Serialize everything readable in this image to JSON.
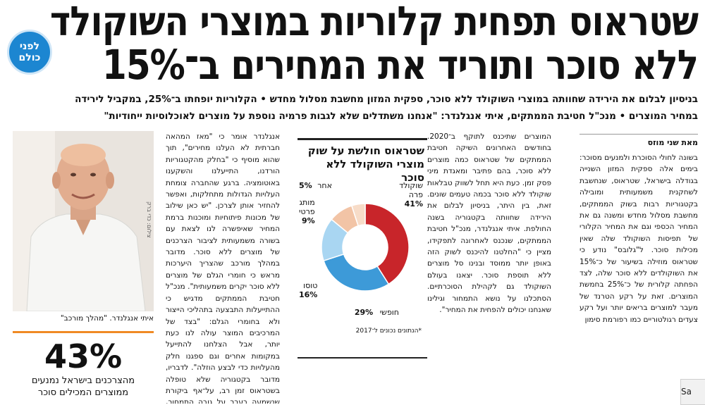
{
  "headline": {
    "line1": "שטראוס תפחית קלוריות במוצרי השוקולד",
    "line2": "ללא סוכר ותוריד את המחירים ב־15%"
  },
  "badge": {
    "line1": "לפני",
    "line2": "כולם"
  },
  "subhead": {
    "line1": "בניסיון לבלום את הירידה שחוותה במוצרי השוקולד ללא סוכר, ספקית המזון מחשבת מסלול מחדש • הקלוריות יופחתו ב־25%, במקביל לירידה",
    "line2": "במחיר המוצרים • מנכ\"ל חטיבת הממתקים, איתי אנגלנדר: \"אנחנו משתדלים שלא לגבות פרמיה נוספת על מוצרים לאוכלוסיות ייחודיות\""
  },
  "byline": "מאת שני מוזס",
  "col1": "בשונה לחולי הסוכרת ולמנעים מסוכר: בימים אלה ספקית המזון השנייה בגודלה בישראל, שטראוס, שנחשבת לשחקנית משמעותית ומובילה בקטגוריות רבות בשוק הממתקים, מחשבת מסלול מחדש ומשנה גם את המחיר הכספי וגם את המחיר הקלורי של תפיסות השוקולד שלה שאין מכילות סוכר. ל\"גלובס\" נודע כי שטראוס מוזילה בשיעור של כ־15% את השוקולדים ללא סוכר שלה, לצד הפחתה קלורית של כ־25% בחמשת המוצרים. זאת על רקע הטרנד של מעבר למוצרים בריאים יותר ועל רקע צעדים רגולטוריים כמו רפורמת סימון",
  "col2": "המוצרים שתיכנס לתוקף ב־2020. בחודשים האחרונים השיקה חטיבת הממתקים של שטראוס כמה מוצרים ללא סוכר, בהם פתיבר ומאגדת מיני פסק זמן. כעת היא תחל לשווק טבלאות שוקולד ללא סוכר בכמה טעמים שונים. זאת, בין היתר, בניסיון לבלום את הירידה שחוותה בקטגוריה בשנה החולפת. איתי אנגלנדר, מנכ\"ל חטיבת הממתקים, שנכנס לאחרונה לתפקידו, מציין כי \"החלטנו להיכנס לשוק הזה באופן יותר ממוסד ובנינו סל מוצרים ללא תוספת סוכר. יצאנו בעולם השוקולד גם לקהילת הסוכרתיים. הסתכלנו על נושא התמחור וגילינו שאנחנו יכולים להפחית את המחיר\".",
  "chart_data": {
    "type": "pie",
    "title": "שטראוס חולשת על שוק מוצרי השוקולד ללא סוכר",
    "categories": [
      "שוקולד פרה",
      "חופשי",
      "טוסו",
      "מותג פרטי",
      "אחר"
    ],
    "values": [
      41,
      29,
      16,
      9,
      5
    ],
    "unit": "%",
    "note": "*הנתונים נכונים ל־2017"
  },
  "chart_labels": {
    "cat0_l1": "שוקולד",
    "cat0_l2": "פרה",
    "v0": "41%",
    "cat1": "חופשי",
    "v1": "29%",
    "cat2": "טוסו",
    "v2": "16%",
    "cat3_l1": "מותג",
    "cat3_l2": "פרטי",
    "v3": "9%",
    "cat4": "אחר",
    "v4": "5%"
  },
  "colors": {
    "seg0": "#c8252a",
    "seg1": "#3d9ad8",
    "seg2": "#a9d6f2",
    "seg3": "#f2c4a6",
    "seg4": "#f7dcc8",
    "badge": "#1c86d1",
    "rule": "#f08a24"
  },
  "col3": "אנגלנדר אומר כי \"מאז המהאה חברתית לא העלנו מחירים\", תוך שהוא מוסיף כי \"בחלק מהקטגוריות הורדנו, התייעלנו והשקענו באוטומציה. ברגע שהחברה צומחת העלויות הגדולות מתחלקות, ואפשר להחזיר אותן לצרכן. \"יש כאן שילוב של מכונות פיתוחיות ומוכנות ברמת המחיר שאיפשרה לנו לצאת עם בשורה משמעותית לציבור הצרכנים של מוצרים ללא סוכר. מדובר במהלך מורכב שהצריך היערכות מראש כי חומרי הגלם של מוצרים ללא סוכר יקרים משמעותית\". מנכ\"ל חטיבת הממתקים מדגיש כי ההתייעלות התבצעה בתהליכי הייצור ולא בחומרי הגלם: \"בצד של המרכיבים המוצר עולה לנו כעת יותר, אבל הצלחנו להתייעל במקומות אחרים וגם ספגנו חלק מהעלויות כדי לבצע הוזלה\". לדבריו, מדובר בקטגוריה שלא טופלה בשטראוס זמן רב, על־אף ביקורת שנשמעה בעבר על גובה התמחור, וכעת \"ברקנו ראינו שיש",
  "photo_credit": "צילום: כדי ברק",
  "caption": "איתי אנגלנדר. \"מהלך מורכב\"",
  "stat": {
    "value": "43%",
    "caption_l1": "מהצרכנים בישראל נמנעים",
    "caption_l2": "ממוצרים המכילים סוכר"
  },
  "corner_button": "Sa"
}
